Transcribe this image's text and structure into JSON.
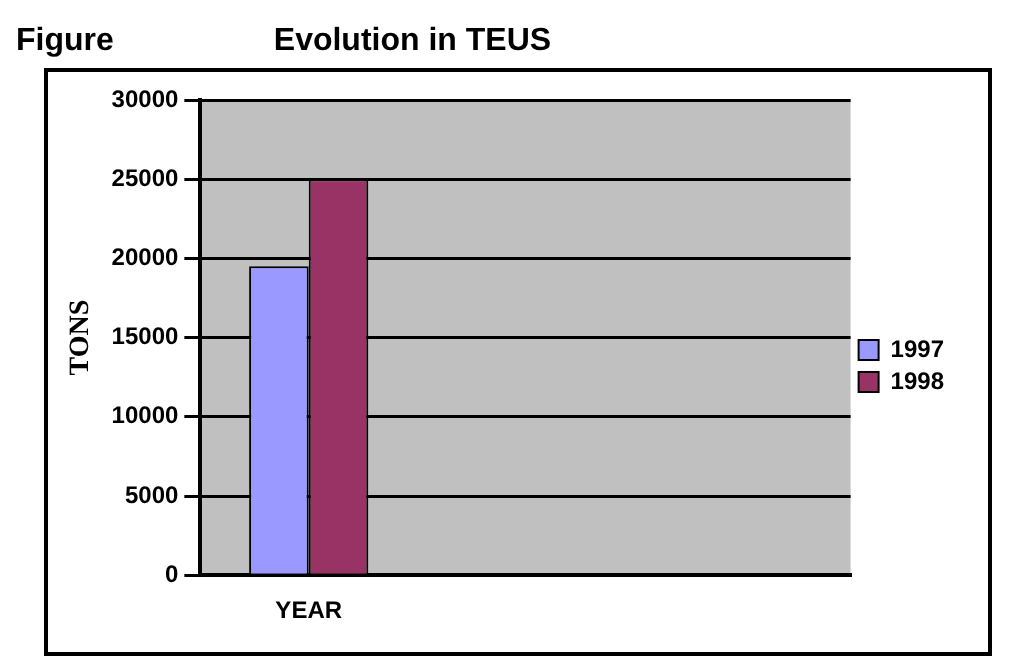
{
  "chart_data": {
    "type": "bar",
    "title": "Evolution in TEUS",
    "annotations": [
      "Figure"
    ],
    "ylabel": "TONS",
    "categories": [
      "YEAR",
      null,
      null
    ],
    "series": [
      {
        "name": "1997",
        "color": "#9999ff",
        "values": [
          19500,
          null,
          null
        ]
      },
      {
        "name": "1998",
        "color": "#993366",
        "values": [
          25000,
          null,
          null
        ]
      }
    ],
    "ylim": [
      0,
      30000
    ],
    "yticks": [
      0,
      5000,
      10000,
      15000,
      20000,
      25000,
      30000
    ],
    "grid": "y",
    "legend": "right"
  }
}
